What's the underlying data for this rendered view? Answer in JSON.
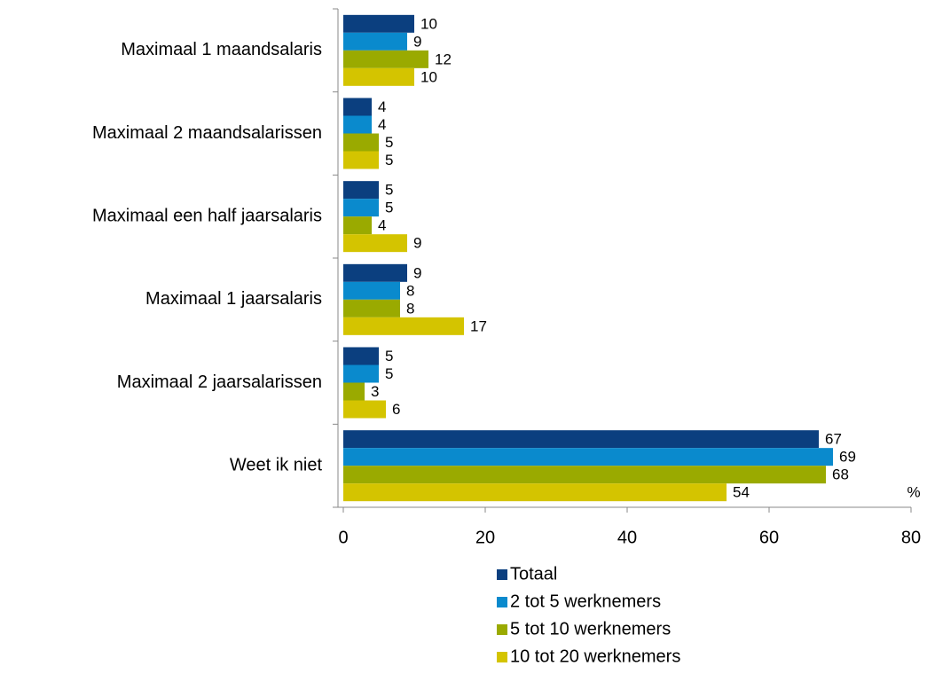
{
  "chart_data": {
    "type": "hbar",
    "categories": [
      "Maximaal 1 maandsalaris",
      "Maximaal 2 maandsalarissen",
      "Maximaal een half jaarsalaris",
      "Maximaal 1 jaarsalaris",
      "Maximaal 2 jaarsalarissen",
      "Weet ik niet"
    ],
    "series": [
      {
        "name": "Totaal",
        "color": "#0b3f7f",
        "values": [
          10,
          4,
          5,
          9,
          5,
          67
        ]
      },
      {
        "name": "2 tot 5 werknemers",
        "color": "#0a8acd",
        "values": [
          9,
          4,
          5,
          8,
          5,
          69
        ]
      },
      {
        "name": "5 tot 10 werknemers",
        "color": "#9aaa00",
        "values": [
          12,
          5,
          4,
          8,
          3,
          68
        ]
      },
      {
        "name": "10 tot 20 werknemers",
        "color": "#d4c400",
        "values": [
          10,
          5,
          9,
          17,
          6,
          54
        ]
      }
    ],
    "xlim": [
      0,
      80
    ],
    "xticks": [
      0,
      20,
      40,
      60,
      80
    ],
    "annotation": "%",
    "legend": "bottom"
  }
}
